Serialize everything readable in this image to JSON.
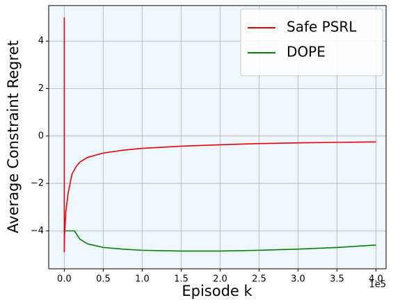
{
  "chart_data": {
    "type": "line",
    "x_label": "Episode k",
    "y_label": "Average Constraint Regret",
    "x_offset_label": "1e5",
    "xlim": [
      -0.2,
      4.13
    ],
    "ylim": [
      -5.6,
      5.5
    ],
    "xticks": [
      {
        "value": 0,
        "label": "0.0"
      },
      0.5,
      {
        "value": 1,
        "label": "1.0"
      },
      1.5,
      {
        "value": 2,
        "label": "2.0"
      },
      2.5,
      {
        "value": 3,
        "label": "3.0"
      },
      3.5,
      {
        "value": 4,
        "label": "4.0"
      }
    ],
    "yticks": [
      {
        "value": -4,
        "label": "−4"
      },
      {
        "value": -2,
        "label": "−2"
      },
      0,
      2,
      4
    ],
    "grid": true,
    "background": "#eef6fe",
    "legend": "upper right",
    "series": [
      {
        "name": "Safe PSRL",
        "color": "#ee0000",
        "x": [
          0,
          0,
          0.003,
          0.02,
          0.05,
          0.1,
          0.15,
          0.2,
          0.3,
          0.5,
          0.75,
          1.0,
          1.5,
          2.0,
          2.5,
          3.0,
          3.5,
          4.0
        ],
        "values": [
          5.0,
          -4.9,
          -4.2,
          -3.2,
          -2.4,
          -1.6,
          -1.3,
          -1.1,
          -0.9,
          -0.72,
          -0.6,
          -0.52,
          -0.43,
          -0.37,
          -0.32,
          -0.29,
          -0.27,
          -0.25
        ]
      },
      {
        "name": "DOPE",
        "color": "#008000",
        "x": [
          0,
          0.13,
          0.2,
          0.3,
          0.5,
          0.75,
          1.0,
          1.5,
          2.0,
          2.5,
          3.0,
          3.5,
          4.0
        ],
        "values": [
          -4.0,
          -4.0,
          -4.35,
          -4.55,
          -4.7,
          -4.77,
          -4.82,
          -4.85,
          -4.85,
          -4.82,
          -4.77,
          -4.7,
          -4.6
        ]
      }
    ]
  }
}
